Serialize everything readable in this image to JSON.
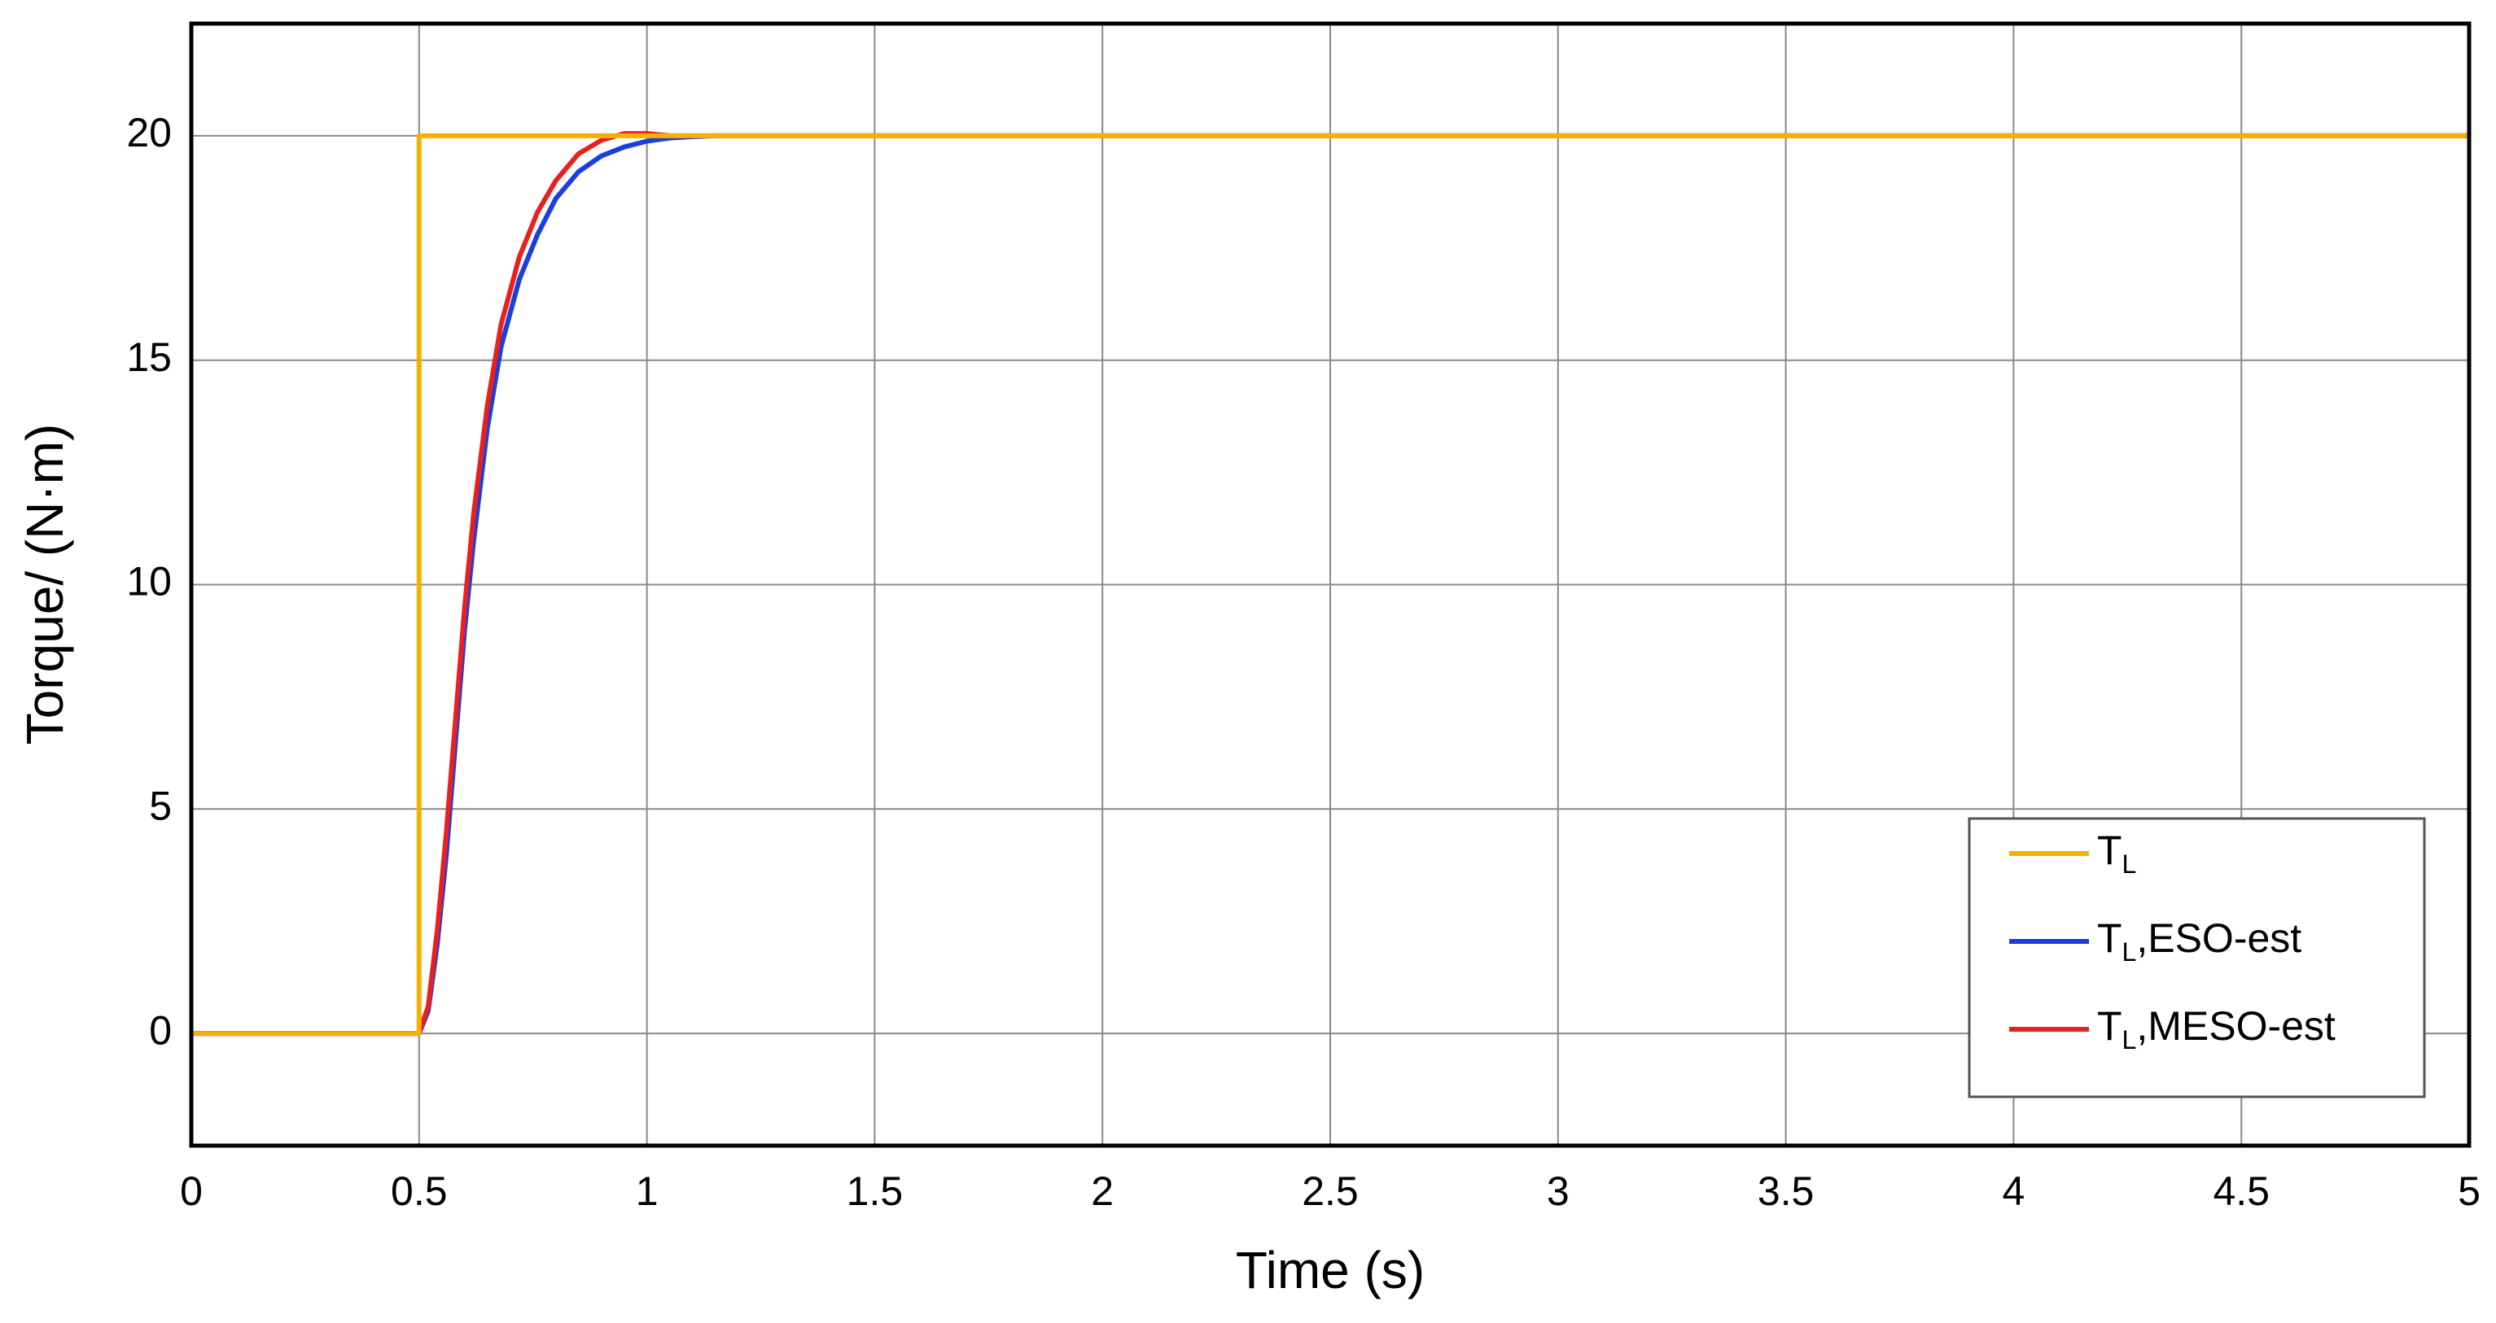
{
  "chart_data": {
    "type": "line",
    "x_label": "Time (s)",
    "y_label": "Torque/ (N·m)",
    "xlim": [
      0,
      5
    ],
    "ylim": [
      -2.5,
      22.5
    ],
    "xticks": [
      0,
      0.5,
      1,
      1.5,
      2,
      2.5,
      3,
      3.5,
      4,
      4.5,
      5
    ],
    "yticks": [
      0,
      5,
      10,
      15,
      20
    ],
    "grid": true,
    "legend": "lower right",
    "series": [
      {
        "name": "TL",
        "color": "#f5b000",
        "x": [
          0,
          0.5,
          0.5,
          5
        ],
        "values": [
          0,
          0,
          20,
          20
        ]
      },
      {
        "name": "TL,ESO-est",
        "color": "#1a3fe0",
        "x": [
          0,
          0.5,
          0.52,
          0.54,
          0.56,
          0.58,
          0.6,
          0.62,
          0.65,
          0.68,
          0.72,
          0.76,
          0.8,
          0.85,
          0.9,
          0.95,
          1.0,
          1.05,
          1.1,
          1.15,
          5
        ],
        "values": [
          0,
          0,
          0.5,
          2,
          4,
          6.5,
          9,
          11,
          13.5,
          15.3,
          16.8,
          17.8,
          18.6,
          19.2,
          19.55,
          19.75,
          19.88,
          19.95,
          19.98,
          20,
          20
        ]
      },
      {
        "name": "TL,MESO-est",
        "color": "#e8201e",
        "x": [
          0,
          0.5,
          0.52,
          0.54,
          0.56,
          0.58,
          0.6,
          0.62,
          0.65,
          0.68,
          0.72,
          0.76,
          0.8,
          0.85,
          0.9,
          0.95,
          1.0,
          1.05,
          1.1,
          1.15,
          5
        ],
        "values": [
          0,
          0,
          0.6,
          2.3,
          4.5,
          7,
          9.5,
          11.6,
          14,
          15.8,
          17.3,
          18.3,
          19.0,
          19.6,
          19.9,
          20.05,
          20.05,
          20,
          20,
          20,
          20
        ]
      }
    ]
  }
}
